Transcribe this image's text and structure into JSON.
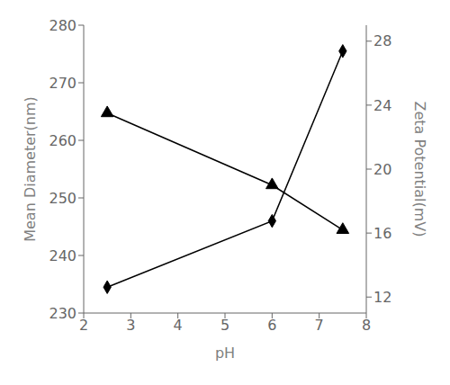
{
  "chart_data": {
    "type": "line",
    "x": [
      2.5,
      6.0,
      7.5
    ],
    "xlabel": "pH",
    "ylabel": "Mean Diameter(nm)",
    "y2label": "Zeta Potential(mV)",
    "xlim": [
      2,
      8
    ],
    "xticks": [
      2,
      3,
      4,
      5,
      6,
      7,
      8
    ],
    "ylim": [
      230,
      280
    ],
    "yticks": [
      230,
      240,
      250,
      260,
      270,
      280
    ],
    "y2lim": [
      11,
      29
    ],
    "y2ticks": [
      12,
      16,
      20,
      24,
      28
    ],
    "series": [
      {
        "values": [
          234.5,
          246.0,
          275.5
        ],
        "color": "#000000",
        "marker": "diamond"
      },
      {
        "values": [
          23.5,
          19.0,
          16.2
        ],
        "color": "#000000",
        "marker": "triangle",
        "axis": "y2"
      }
    ]
  }
}
